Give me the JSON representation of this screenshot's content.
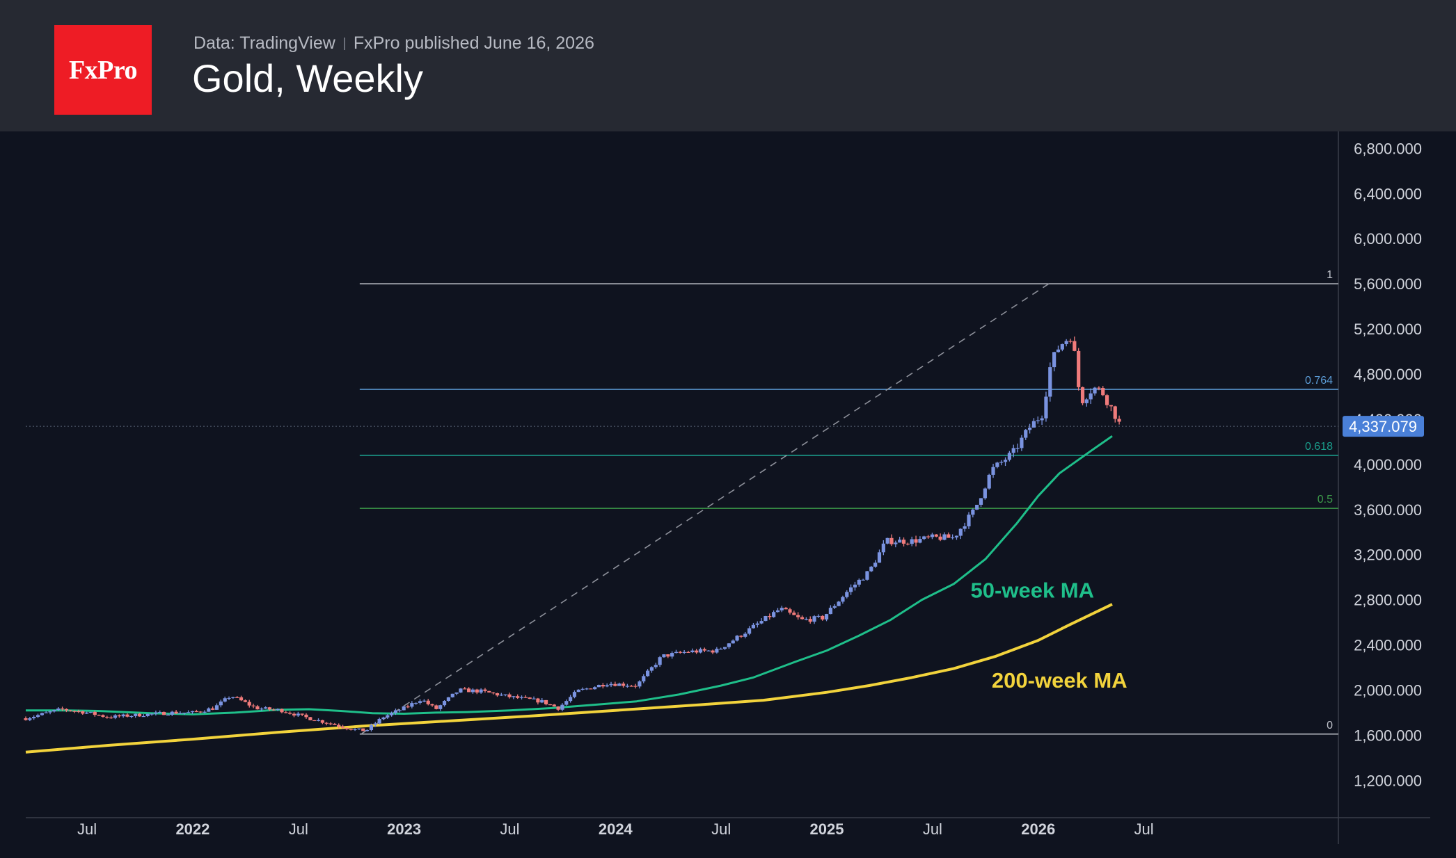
{
  "header": {
    "logo_text": "FxPro",
    "source_text": "Data: TradingView",
    "published_text": "FxPro published June 16, 2026",
    "title": "Gold, Weekly"
  },
  "colors": {
    "logo_red": "#ee1c25",
    "header_bg": "#262932",
    "chart_bg": "#0f131f",
    "candle_up": "#7a93e0",
    "candle_down": "#f07b7b",
    "ma50": "#1fbf8a",
    "ma200": "#f2d33c",
    "fib_1": "#c0c3cb",
    "fib_0764": "#5b9bd5",
    "fib_0618": "#1a9e8c",
    "fib_05": "#3d9b4a",
    "fib_0": "#c0c3cb"
  },
  "chart_data": {
    "type": "candlestick",
    "instrument": "Gold",
    "timeframe": "Weekly",
    "ylim": [
      900,
      6950
    ],
    "xlim": [
      2021.21,
      2027.42
    ],
    "y_ticks": [
      1200,
      1600,
      2000,
      2400,
      2800,
      3200,
      3600,
      4000,
      4400,
      4800,
      5200,
      5600,
      6000,
      6400,
      6800
    ],
    "y_tick_labels": [
      "1,200.000",
      "1,600.000",
      "2,000.000",
      "2,400.000",
      "2,800.000",
      "3,200.000",
      "3,600.000",
      "4,000.000",
      "4,400.000",
      "4,800.000",
      "5,200.000",
      "5,600.000",
      "6,000.000",
      "6,400.000",
      "6,800.000"
    ],
    "x_ticks": [
      {
        "label": "Jul",
        "t": 2021.5,
        "bold": false
      },
      {
        "label": "2022",
        "t": 2022.0,
        "bold": true
      },
      {
        "label": "Jul",
        "t": 2022.5,
        "bold": false
      },
      {
        "label": "2023",
        "t": 2023.0,
        "bold": true
      },
      {
        "label": "Jul",
        "t": 2023.5,
        "bold": false
      },
      {
        "label": "2024",
        "t": 2024.0,
        "bold": true
      },
      {
        "label": "Jul",
        "t": 2024.5,
        "bold": false
      },
      {
        "label": "2025",
        "t": 2025.0,
        "bold": true
      },
      {
        "label": "Jul",
        "t": 2025.5,
        "bold": false
      },
      {
        "label": "2026",
        "t": 2026.0,
        "bold": true
      },
      {
        "label": "Jul",
        "t": 2026.5,
        "bold": false
      }
    ],
    "last_price": 4337.079,
    "last_price_label": "4,337.079",
    "fib_levels": [
      {
        "label": "1",
        "value": 5600
      },
      {
        "label": "0.764",
        "value": 4665
      },
      {
        "label": "0.618",
        "value": 4080
      },
      {
        "label": "0.5",
        "value": 3610
      },
      {
        "label": "0",
        "value": 1610
      }
    ],
    "fib_start_t": 2022.79,
    "trend_line": {
      "start": {
        "t": 2022.8,
        "price": 1615
      },
      "end": {
        "t": 2026.05,
        "price": 5600
      }
    },
    "ma_labels": [
      {
        "text": "50-week MA",
        "color": "#1fbf8a",
        "t": 2025.68,
        "price": 2820
      },
      {
        "text": "200-week MA",
        "color": "#f2d33c",
        "t": 2025.78,
        "price": 2020
      }
    ],
    "ma50": [
      [
        2021.21,
        1820
      ],
      [
        2021.4,
        1820
      ],
      [
        2021.55,
        1815
      ],
      [
        2021.8,
        1795
      ],
      [
        2022.0,
        1785
      ],
      [
        2022.2,
        1800
      ],
      [
        2022.4,
        1825
      ],
      [
        2022.55,
        1830
      ],
      [
        2022.7,
        1815
      ],
      [
        2022.85,
        1795
      ],
      [
        2023.0,
        1790
      ],
      [
        2023.15,
        1800
      ],
      [
        2023.3,
        1805
      ],
      [
        2023.5,
        1820
      ],
      [
        2023.7,
        1840
      ],
      [
        2023.9,
        1870
      ],
      [
        2024.1,
        1900
      ],
      [
        2024.3,
        1960
      ],
      [
        2024.5,
        2040
      ],
      [
        2024.65,
        2110
      ],
      [
        2024.85,
        2250
      ],
      [
        2025.0,
        2350
      ],
      [
        2025.15,
        2480
      ],
      [
        2025.3,
        2620
      ],
      [
        2025.45,
        2800
      ],
      [
        2025.6,
        2940
      ],
      [
        2025.75,
        3160
      ],
      [
        2025.9,
        3480
      ],
      [
        2026.0,
        3720
      ],
      [
        2026.1,
        3920
      ],
      [
        2026.25,
        4120
      ],
      [
        2026.35,
        4250
      ]
    ],
    "ma200": [
      [
        2021.21,
        1450
      ],
      [
        2021.6,
        1510
      ],
      [
        2022.0,
        1565
      ],
      [
        2022.4,
        1625
      ],
      [
        2022.8,
        1680
      ],
      [
        2023.2,
        1725
      ],
      [
        2023.6,
        1770
      ],
      [
        2024.0,
        1820
      ],
      [
        2024.4,
        1870
      ],
      [
        2024.7,
        1910
      ],
      [
        2025.0,
        1980
      ],
      [
        2025.2,
        2040
      ],
      [
        2025.4,
        2110
      ],
      [
        2025.6,
        2190
      ],
      [
        2025.8,
        2300
      ],
      [
        2026.0,
        2440
      ],
      [
        2026.15,
        2580
      ],
      [
        2026.35,
        2760
      ]
    ],
    "anchors": [
      [
        2021.21,
        1750
      ],
      [
        2021.38,
        1830
      ],
      [
        2021.5,
        1800
      ],
      [
        2021.6,
        1760
      ],
      [
        2021.75,
        1780
      ],
      [
        2021.9,
        1800
      ],
      [
        2022.0,
        1800
      ],
      [
        2022.1,
        1840
      ],
      [
        2022.18,
        1950
      ],
      [
        2022.3,
        1840
      ],
      [
        2022.42,
        1820
      ],
      [
        2022.55,
        1750
      ],
      [
        2022.66,
        1700
      ],
      [
        2022.76,
        1650
      ],
      [
        2022.82,
        1640
      ],
      [
        2022.9,
        1760
      ],
      [
        2023.0,
        1840
      ],
      [
        2023.08,
        1920
      ],
      [
        2023.15,
        1830
      ],
      [
        2023.26,
        2000
      ],
      [
        2023.36,
        1990
      ],
      [
        2023.5,
        1940
      ],
      [
        2023.65,
        1900
      ],
      [
        2023.73,
        1840
      ],
      [
        2023.82,
        1990
      ],
      [
        2023.96,
        2060
      ],
      [
        2024.1,
        2040
      ],
      [
        2024.22,
        2300
      ],
      [
        2024.34,
        2340
      ],
      [
        2024.48,
        2350
      ],
      [
        2024.62,
        2520
      ],
      [
        2024.78,
        2720
      ],
      [
        2024.88,
        2620
      ],
      [
        2024.98,
        2640
      ],
      [
        2025.1,
        2880
      ],
      [
        2025.2,
        3050
      ],
      [
        2025.28,
        3320
      ],
      [
        2025.4,
        3320
      ],
      [
        2025.5,
        3350
      ],
      [
        2025.6,
        3350
      ],
      [
        2025.7,
        3600
      ],
      [
        2025.78,
        3950
      ],
      [
        2025.88,
        4100
      ],
      [
        2025.96,
        4330
      ],
      [
        2026.02,
        4450
      ],
      [
        2026.06,
        4900
      ],
      [
        2026.1,
        5050
      ],
      [
        2026.16,
        5150
      ],
      [
        2026.2,
        4550
      ],
      [
        2026.26,
        4680
      ],
      [
        2026.3,
        4650
      ],
      [
        2026.36,
        4450
      ],
      [
        2026.4,
        4300
      ]
    ],
    "candles": []
  }
}
